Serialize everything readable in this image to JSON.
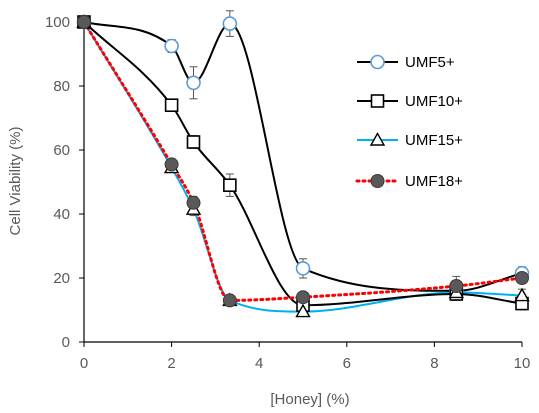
{
  "chart_data": {
    "type": "scatter",
    "title": "",
    "xlabel": "[Honey] (%)",
    "ylabel": "Cell Viability (%)",
    "xlim": [
      0,
      10
    ],
    "ylim": [
      0,
      100
    ],
    "xticks": [
      0,
      2,
      4,
      6,
      8,
      10
    ],
    "yticks": [
      0,
      20,
      40,
      60,
      80,
      100
    ],
    "x_tick_labels": [
      "0",
      "2",
      "4",
      "6",
      "8",
      "10"
    ],
    "y_tick_labels": [
      "0",
      "20",
      "40",
      "60",
      "80",
      "100"
    ],
    "grid": false,
    "legend_position": "right",
    "series": [
      {
        "name": "UMF5+",
        "marker": "circle-open",
        "line_color": "#000000",
        "marker_color": "#5b9bd5",
        "line_style": "solid",
        "x": [
          0,
          2,
          2.5,
          3.33,
          5,
          8.5,
          10
        ],
        "y": [
          100,
          92.5,
          81,
          99.5,
          23,
          16,
          21.5
        ],
        "err": [
          0,
          2,
          5,
          4,
          3,
          2,
          2
        ]
      },
      {
        "name": "UMF10+",
        "marker": "square-open",
        "line_color": "#000000",
        "marker_color": "#000000",
        "line_style": "solid",
        "x": [
          0,
          2,
          2.5,
          3.33,
          5,
          8.5,
          10
        ],
        "y": [
          100,
          74,
          62.5,
          49,
          11.5,
          15,
          12
        ],
        "err": [
          0,
          1.5,
          2,
          3.5,
          2,
          2,
          1.5
        ]
      },
      {
        "name": "UMF15+",
        "marker": "triangle-open",
        "line_color": "#00b0f0",
        "marker_color": "#000000",
        "line_style": "solid",
        "x": [
          0,
          2,
          2.5,
          3.33,
          5,
          8.5,
          10
        ],
        "y": [
          100,
          54.5,
          41.5,
          13,
          9.5,
          15.5,
          14.5
        ],
        "err": [
          0,
          1.5,
          2,
          1,
          1.5,
          2,
          2
        ]
      },
      {
        "name": "UMF18+",
        "marker": "circle-filled",
        "line_color": "#ff0000",
        "marker_color": "#595959",
        "line_style": "dotted",
        "x": [
          0,
          2,
          2.5,
          3.33,
          5,
          8.5,
          10
        ],
        "y": [
          100,
          55.5,
          43.5,
          13,
          14,
          17.5,
          20
        ],
        "err": [
          0,
          1.5,
          2,
          1,
          1.5,
          3,
          1.5
        ]
      }
    ]
  }
}
